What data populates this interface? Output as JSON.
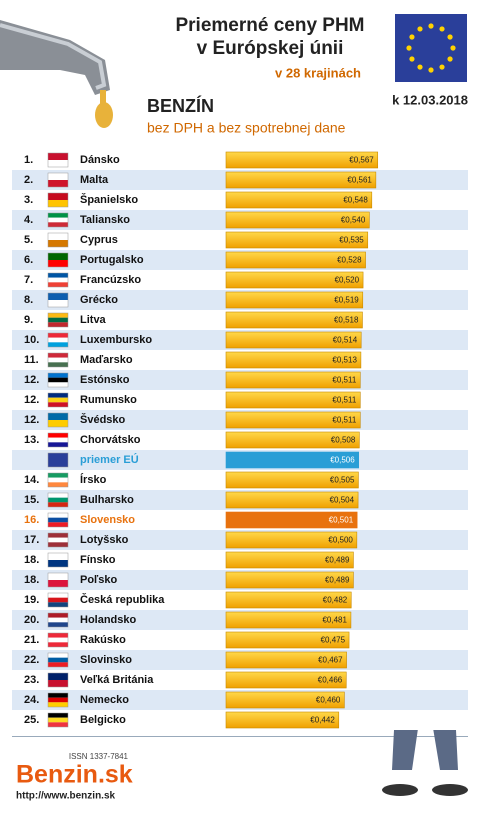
{
  "chart_data": {
    "type": "bar",
    "orientation": "horizontal",
    "title": "Priemerné ceny PHM",
    "title_line2": "v Európskej únii",
    "subtitle": "v 28 krajinách",
    "fuel": "BENZÍN",
    "note": "bez DPH a bez spotrebnej dane",
    "date": "k 12.03.2018",
    "issn": "ISSN 1337-7841",
    "brand": "Benzin.sk",
    "url": "http://www.benzin.sk",
    "ranks": [
      "1.",
      "2.",
      "3.",
      "4.",
      "5.",
      "6.",
      "7.",
      "8.",
      "9.",
      "10.",
      "11.",
      "12.",
      "12.",
      "12.",
      "13.",
      null,
      "14.",
      "15.",
      "16.",
      "17.",
      "18.",
      "18.",
      "19.",
      "20.",
      "21.",
      "22.",
      "23.",
      "24.",
      "25."
    ],
    "categories": [
      "Dánsko",
      "Malta",
      "Španielsko",
      "Taliansko",
      "Cyprus",
      "Portugalsko",
      "Francúzsko",
      "Grécko",
      "Litva",
      "Luxembursko",
      "Maďarsko",
      "Estónsko",
      "Rumunsko",
      "Švédsko",
      "Chorvátsko",
      "priemer EÚ",
      "Írsko",
      "Bulharsko",
      "Slovensko",
      "Lotyšsko",
      "Fínsko",
      "Poľsko",
      "Česká republika",
      "Holandsko",
      "Rakúsko",
      "Slovinsko",
      "Veľká Británia",
      "Nemecko",
      "Belgicko"
    ],
    "values": [
      0.567,
      0.561,
      0.548,
      0.54,
      0.535,
      0.528,
      0.52,
      0.519,
      0.518,
      0.514,
      0.513,
      0.511,
      0.511,
      0.511,
      0.508,
      0.506,
      0.505,
      0.504,
      0.501,
      0.5,
      0.489,
      0.489,
      0.482,
      0.481,
      0.475,
      0.467,
      0.466,
      0.46,
      0.442
    ],
    "value_labels": [
      "€0,567",
      "€0,561",
      "€0,548",
      "€0,540",
      "€0,535",
      "€0,528",
      "€0,520",
      "€0,519",
      "€0,518",
      "€0,514",
      "€0,513",
      "€0,511",
      "€0,511",
      "€0,511",
      "€0,508",
      "€0,506",
      "€0,505",
      "€0,504",
      "€0,501",
      "€0,500",
      "€0,489",
      "€0,489",
      "€0,482",
      "€0,481",
      "€0,475",
      "€0,467",
      "€0,466",
      "€0,460",
      "€0,442"
    ],
    "color": "#f6b400",
    "highlight_colors": {
      "15": "#2a9ed6",
      "18": "#e8720e"
    },
    "xlim": [
      0.08,
      0.6
    ]
  }
}
